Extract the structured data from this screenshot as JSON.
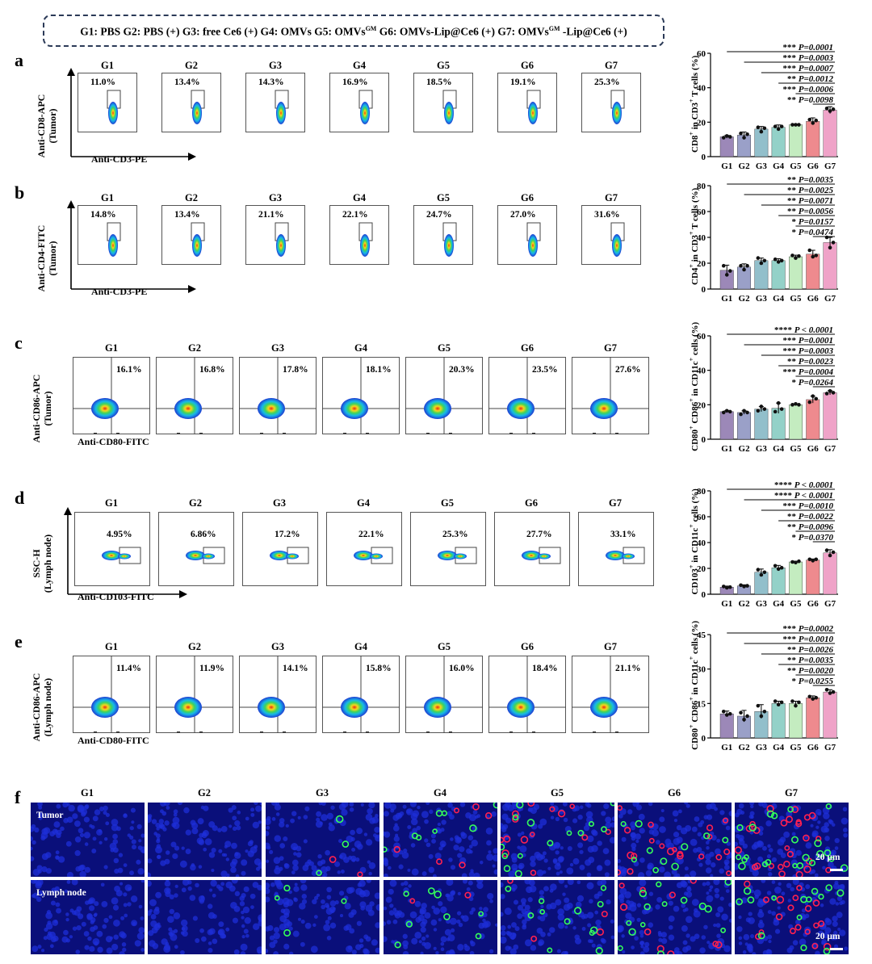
{
  "legend": {
    "parts": [
      {
        "text": "G1: PBS G2: PBS (+) G3: free Ce6 (+) G4: OMVs G5: OMVs"
      },
      {
        "sup": "GM"
      },
      {
        "text": " G6: OMVs-Lip@Ce6 (+) G7: OMVs"
      },
      {
        "sup": "GM"
      },
      {
        "text": " -Lip@Ce6 (+)"
      }
    ]
  },
  "groups": [
    "G1",
    "G2",
    "G3",
    "G4",
    "G5",
    "G6",
    "G7"
  ],
  "colors": {
    "bars": [
      "#9c88b8",
      "#9aa0c8",
      "#92bfcb",
      "#93d1c8",
      "#c4ecc0",
      "#ee8a8e",
      "#efa3c8"
    ],
    "facs_blue": "#1e3cd2",
    "fluo_bg": "#0a0f7a"
  },
  "rows": [
    {
      "letter": "a",
      "ylabel_line1": "Anti-CD8-APC",
      "ylabel_line2": "(Tumor)",
      "xlabel": "Anti-CD3-PE",
      "plot_style": "gate",
      "percentages": [
        "11.0%",
        "13.4%",
        "14.3%",
        "16.9%",
        "18.5%",
        "19.1%",
        "25.3%"
      ],
      "chart": {
        "type": "bar",
        "ylabel_html": "CD8<sup>+</sup> in CD3<sup>+</sup> T cells (%)",
        "ylabel": "CD8+ in CD3+ T cells (%)",
        "yticks": [
          0,
          20,
          40,
          60
        ],
        "ylim": [
          0,
          60
        ],
        "categories": [
          "G1",
          "G2",
          "G3",
          "G4",
          "G5",
          "G6",
          "G7"
        ],
        "values": [
          11.5,
          12.5,
          16.0,
          17.0,
          18.5,
          20.5,
          27.0
        ],
        "errors": [
          0.8,
          1.8,
          1.5,
          1.4,
          0.5,
          2.0,
          2.0
        ],
        "points": [
          [
            11,
            12,
            11.5
          ],
          [
            13.5,
            11,
            13
          ],
          [
            17,
            14.5,
            16.5
          ],
          [
            17.5,
            16,
            17.5
          ],
          [
            18.5,
            18.5,
            18.5
          ],
          [
            21.5,
            19.5,
            21
          ],
          [
            28,
            26.5,
            27.5
          ]
        ],
        "comparisons": [
          {
            "from": 0,
            "stars": "***",
            "p": "P=0.0001"
          },
          {
            "from": 1,
            "stars": "***",
            "p": "P=0.0003"
          },
          {
            "from": 2,
            "stars": "***",
            "p": "P=0.0007"
          },
          {
            "from": 3,
            "stars": "**",
            "p": "P=0.0012"
          },
          {
            "from": 4,
            "stars": "***",
            "p": "P=0.0006"
          },
          {
            "from": 5,
            "stars": "**",
            "p": "P=0.0098"
          }
        ]
      }
    },
    {
      "letter": "b",
      "ylabel_line1": "Anti-CD4-FITC",
      "ylabel_line2": "(Tumor)",
      "xlabel": "Anti-CD3-PE",
      "plot_style": "gate",
      "percentages": [
        "14.8%",
        "13.4%",
        "21.1%",
        "22.1%",
        "24.7%",
        "27.0%",
        "31.6%"
      ],
      "chart": {
        "type": "bar",
        "ylabel_html": "CD4<sup>+</sup> in CD3<sup>+</sup> T cells (%)",
        "ylabel": "CD4+ in CD3+ T cells (%)",
        "yticks": [
          0,
          20,
          40,
          60,
          80
        ],
        "ylim": [
          0,
          80
        ],
        "categories": [
          "G1",
          "G2",
          "G3",
          "G4",
          "G5",
          "G6",
          "G7"
        ],
        "values": [
          14.5,
          17.0,
          22.0,
          22.0,
          25.0,
          27.0,
          36.0
        ],
        "errors": [
          4.0,
          2.5,
          2.0,
          1.5,
          1.2,
          3.0,
          4.0
        ],
        "points": [
          [
            18,
            11,
            14
          ],
          [
            18,
            15,
            18
          ],
          [
            24,
            20,
            22
          ],
          [
            23,
            21,
            22
          ],
          [
            26,
            24,
            25.5
          ],
          [
            30,
            25,
            26
          ],
          [
            40,
            32,
            36
          ]
        ],
        "comparisons": [
          {
            "from": 0,
            "stars": "**",
            "p": "P=0.0035"
          },
          {
            "from": 1,
            "stars": "**",
            "p": "P=0.0025"
          },
          {
            "from": 2,
            "stars": "**",
            "p": "P=0.0071"
          },
          {
            "from": 3,
            "stars": "**",
            "p": "P=0.0056"
          },
          {
            "from": 4,
            "stars": "*",
            "p": "P=0.0157"
          },
          {
            "from": 5,
            "stars": "*",
            "p": "P=0.0474"
          }
        ]
      }
    },
    {
      "letter": "c",
      "ylabel_line1": "Anti-CD86-APC",
      "ylabel_line2": "(Tumor)",
      "xlabel": "Anti-CD80-FITC",
      "plot_style": "quadrant",
      "percentages": [
        "16.1%",
        "16.8%",
        "17.8%",
        "18.1%",
        "20.3%",
        "23.5%",
        "27.6%"
      ],
      "chart": {
        "type": "bar",
        "ylabel_html": "CD80<sup>+</sup> CD86<sup>+</sup> in CD11c<sup>+</sup> cells (%)",
        "ylabel": "CD80+ CD86+ in CD11c+ cells (%)",
        "yticks": [
          0,
          20,
          40,
          60
        ],
        "ylim": [
          0,
          60
        ],
        "categories": [
          "G1",
          "G2",
          "G3",
          "G4",
          "G5",
          "G6",
          "G7"
        ],
        "values": [
          16.0,
          15.5,
          17.5,
          18.0,
          20.0,
          23.0,
          27.0
        ],
        "errors": [
          0.6,
          1.0,
          1.5,
          3.0,
          0.5,
          2.0,
          1.2
        ],
        "points": [
          [
            15.5,
            16.5,
            16
          ],
          [
            14.5,
            16.5,
            15.5
          ],
          [
            16.5,
            19,
            17.5
          ],
          [
            16,
            21,
            17.5
          ],
          [
            20,
            20.5,
            20
          ],
          [
            21.5,
            25,
            23.5
          ],
          [
            26.5,
            28,
            27
          ]
        ],
        "comparisons": [
          {
            "from": 0,
            "stars": "****",
            "p": "P < 0.0001"
          },
          {
            "from": 1,
            "stars": "***",
            "p": "P=0.0001"
          },
          {
            "from": 2,
            "stars": "***",
            "p": "P=0.0003"
          },
          {
            "from": 3,
            "stars": "**",
            "p": "P=0.0023"
          },
          {
            "from": 4,
            "stars": "***",
            "p": "P=0.0004"
          },
          {
            "from": 5,
            "stars": "*",
            "p": "P=0.0264"
          }
        ]
      }
    },
    {
      "letter": "d",
      "ylabel_line1": "SSC-H",
      "ylabel_line2": "(Lymph node)",
      "xlabel": "Anti-CD103-FITC",
      "plot_style": "sidegate",
      "percentages": [
        "4.95%",
        "6.86%",
        "17.2%",
        "22.1%",
        "25.3%",
        "27.7%",
        "33.1%"
      ],
      "chart": {
        "type": "bar",
        "ylabel_html": "CD103<sup>+</sup> in CD11c<sup>+</sup> cells (%)",
        "ylabel": "CD103+ in CD11c+ cells (%)",
        "yticks": [
          0,
          20,
          40,
          60,
          80
        ],
        "ylim": [
          0,
          80
        ],
        "categories": [
          "G1",
          "G2",
          "G3",
          "G4",
          "G5",
          "G6",
          "G7"
        ],
        "values": [
          5.5,
          6.5,
          17.0,
          20.5,
          25.0,
          26.5,
          32.0
        ],
        "errors": [
          0.8,
          0.8,
          2.5,
          1.8,
          0.6,
          0.8,
          2.5
        ],
        "points": [
          [
            6,
            5,
            5.5
          ],
          [
            7,
            6,
            6.5
          ],
          [
            19,
            15,
            17
          ],
          [
            22,
            19.5,
            20.5
          ],
          [
            25,
            24.5,
            25.5
          ],
          [
            27,
            26,
            27
          ],
          [
            34,
            30,
            32.5
          ]
        ],
        "comparisons": [
          {
            "from": 0,
            "stars": "****",
            "p": "P < 0.0001"
          },
          {
            "from": 1,
            "stars": "****",
            "p": "P < 0.0001"
          },
          {
            "from": 2,
            "stars": "***",
            "p": "P=0.0010"
          },
          {
            "from": 3,
            "stars": "**",
            "p": "P=0.0022"
          },
          {
            "from": 4,
            "stars": "**",
            "p": "P=0.0096"
          },
          {
            "from": 5,
            "stars": "*",
            "p": "P=0.0370"
          }
        ]
      }
    },
    {
      "letter": "e",
      "ylabel_line1": "Anti-CD86-APC",
      "ylabel_line2": "(Lymph node)",
      "xlabel": "Anti-CD80-FITC",
      "plot_style": "quadrant",
      "percentages": [
        "11.4%",
        "11.9%",
        "14.1%",
        "15.8%",
        "16.0%",
        "18.4%",
        "21.1%"
      ],
      "chart": {
        "type": "bar",
        "ylabel_html": "CD80<sup>+</sup> CD86<sup>+</sup> in CD11c<sup>+</sup> cells (%)",
        "ylabel": "CD80+ CD86+ in CD11c+ cells (%)",
        "yticks": [
          0,
          15,
          30,
          45
        ],
        "ylim": [
          0,
          45
        ],
        "categories": [
          "G1",
          "G2",
          "G3",
          "G4",
          "G5",
          "G6",
          "G7"
        ],
        "values": [
          10.5,
          9.5,
          11.5,
          15.0,
          15.0,
          17.5,
          20.0
        ],
        "errors": [
          1.2,
          2.5,
          3.0,
          1.0,
          1.0,
          0.8,
          1.0
        ],
        "points": [
          [
            11.5,
            10,
            10.5
          ],
          [
            11,
            8,
            9.5
          ],
          [
            14,
            9.5,
            11.5
          ],
          [
            16,
            14.5,
            15.5
          ],
          [
            16,
            14,
            15.5
          ],
          [
            18,
            17,
            17.5
          ],
          [
            21,
            19.5,
            20
          ]
        ],
        "comparisons": [
          {
            "from": 0,
            "stars": "***",
            "p": "P=0.0002"
          },
          {
            "from": 1,
            "stars": "***",
            "p": "P=0.0010"
          },
          {
            "from": 2,
            "stars": "**",
            "p": "P=0.0026"
          },
          {
            "from": 3,
            "stars": "**",
            "p": "P=0.0035"
          },
          {
            "from": 4,
            "stars": "**",
            "p": "P=0.0020"
          },
          {
            "from": 5,
            "stars": "*",
            "p": "P=0.0255"
          }
        ]
      }
    }
  ],
  "panel_f": {
    "letter": "f",
    "row_labels": [
      "Tumor",
      "Lymph node"
    ],
    "scale_bar": "20 μm",
    "red_levels": [
      [
        0,
        0,
        2,
        6,
        14,
        20,
        26
      ],
      [
        0,
        0,
        0,
        2,
        4,
        10,
        18
      ]
    ],
    "green_levels": [
      [
        0,
        0,
        3,
        8,
        14,
        10,
        22
      ],
      [
        0,
        0,
        4,
        8,
        12,
        14,
        14
      ]
    ]
  }
}
